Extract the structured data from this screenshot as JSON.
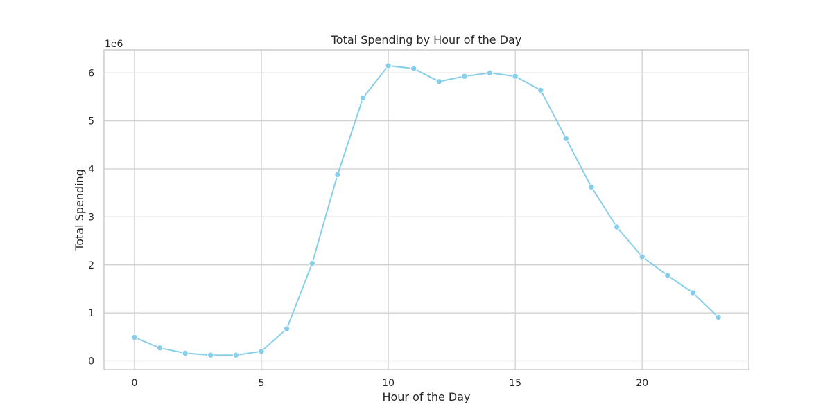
{
  "chart_data": {
    "type": "line",
    "title": "Total Spending by Hour of the Day",
    "xlabel": "Hour of the Day",
    "ylabel": "Total Spending",
    "y_multiplier": "1e6",
    "xlim": [
      -1.2,
      24.2
    ],
    "ylim": [
      -0.18,
      6.48
    ],
    "x_ticks": [
      0,
      5,
      10,
      15,
      20
    ],
    "y_ticks": [
      0,
      1,
      2,
      3,
      4,
      5,
      6
    ],
    "grid": true,
    "legend": "none",
    "x": [
      0,
      1,
      2,
      3,
      4,
      5,
      6,
      7,
      8,
      9,
      10,
      11,
      12,
      13,
      14,
      15,
      16,
      17,
      18,
      19,
      20,
      21,
      22,
      23
    ],
    "series": [
      {
        "values": [
          0.49,
          0.27,
          0.16,
          0.12,
          0.12,
          0.2,
          0.67,
          2.03,
          3.88,
          5.48,
          6.15,
          6.09,
          5.82,
          5.93,
          6.0,
          5.93,
          5.64,
          4.63,
          3.62,
          2.79,
          2.17,
          1.78,
          1.42,
          0.91
        ],
        "color": "#87ceeb"
      }
    ]
  }
}
